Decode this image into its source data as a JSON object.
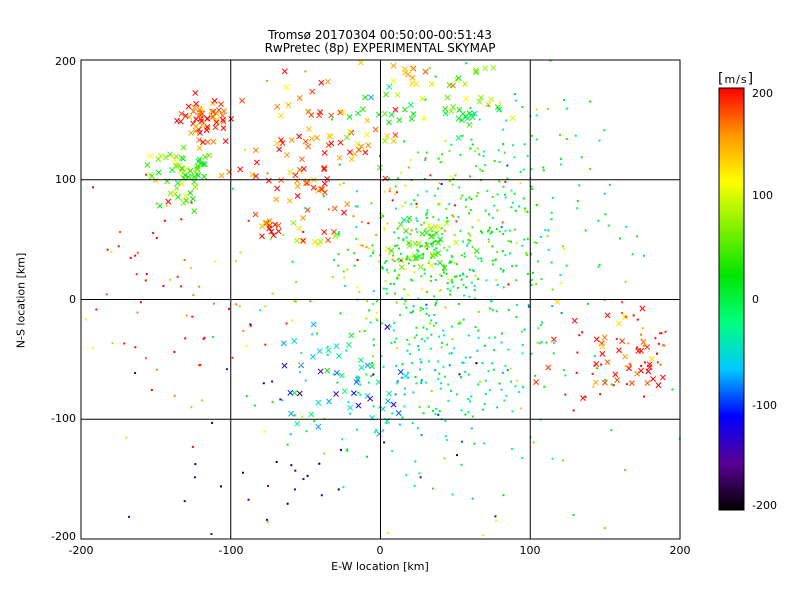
{
  "chart_data": {
    "type": "scatter",
    "title": "Tromsø 20170304 00:50:00-00:51:43",
    "subtitle": "RwPretec (8p) EXPERIMENTAL SKYMAP",
    "xlabel": "E-W location [km]",
    "ylabel": "N-S location [km]",
    "xlim": [
      -200,
      200
    ],
    "ylim": [
      -200,
      200
    ],
    "xticks": [
      "-200",
      "-100",
      "0",
      "100",
      "200"
    ],
    "yticks": [
      "200",
      "100",
      "0",
      "-100",
      "-200"
    ],
    "grid": true,
    "colorbar": {
      "unit": "m/s",
      "range": [
        -200,
        200
      ],
      "ticks": [
        "200",
        "100",
        "0",
        "-100",
        "-200"
      ],
      "colors": [
        "#000000",
        "#5a0096",
        "#0000ff",
        "#00c8ff",
        "#00ff7f",
        "#00e600",
        "#7ff000",
        "#ffff00",
        "#ff9600",
        "#ff0000"
      ]
    },
    "clusters": [
      {
        "x": -118,
        "y": 150,
        "spread": 9,
        "n": 55,
        "v": 190,
        "marker": "x"
      },
      {
        "x": -140,
        "y": 110,
        "spread": 9,
        "n": 25,
        "v": 60,
        "marker": "x"
      },
      {
        "x": -125,
        "y": 110,
        "spread": 7,
        "n": 22,
        "v": 35,
        "marker": "x"
      },
      {
        "x": -130,
        "y": 85,
        "spread": 8,
        "n": 12,
        "v": 70,
        "marker": "x"
      },
      {
        "x": -75,
        "y": 62,
        "spread": 4,
        "n": 14,
        "v": 195,
        "marker": "x"
      },
      {
        "x": -40,
        "y": 50,
        "spread": 8,
        "n": 10,
        "v": 100,
        "marker": "x"
      },
      {
        "x": -40,
        "y": 128,
        "spread": 30,
        "n": 70,
        "v": 170,
        "marker": "x"
      },
      {
        "x": -15,
        "y": 130,
        "spread": 10,
        "n": 12,
        "v": 105,
        "marker": "x"
      },
      {
        "x": -50,
        "y": 100,
        "spread": 12,
        "n": 20,
        "v": 185,
        "marker": "x"
      },
      {
        "x": 25,
        "y": 45,
        "spread": 12,
        "n": 40,
        "v": 50,
        "marker": "x"
      },
      {
        "x": 10,
        "y": 75,
        "spread": 30,
        "n": 60,
        "v": 150,
        "marker": "dot"
      },
      {
        "x": 55,
        "y": 155,
        "spread": 5,
        "n": 14,
        "v": 20,
        "marker": "x"
      },
      {
        "x": 55,
        "y": 175,
        "spread": 14,
        "n": 20,
        "v": 60,
        "marker": "x"
      },
      {
        "x": 20,
        "y": 185,
        "spread": 15,
        "n": 20,
        "v": 130,
        "marker": "x"
      },
      {
        "x": 10,
        "y": 155,
        "spread": 12,
        "n": 15,
        "v": 0,
        "marker": "x"
      },
      {
        "x": 40,
        "y": 40,
        "spread": 35,
        "n": 300,
        "v": 20,
        "marker": "dot"
      },
      {
        "x": 100,
        "y": 70,
        "spread": 40,
        "n": 80,
        "v": -10,
        "marker": "dot"
      },
      {
        "x": 90,
        "y": 130,
        "spread": 30,
        "n": 50,
        "v": 10,
        "marker": "dot"
      },
      {
        "x": 40,
        "y": -60,
        "spread": 40,
        "n": 250,
        "v": -30,
        "marker": "dot"
      },
      {
        "x": -20,
        "y": -70,
        "spread": 25,
        "n": 50,
        "v": -60,
        "marker": "x"
      },
      {
        "x": 160,
        "y": -45,
        "spread": 22,
        "n": 40,
        "v": 190,
        "marker": "x"
      },
      {
        "x": 170,
        "y": -40,
        "spread": 25,
        "n": 50,
        "v": 190,
        "marker": "dot"
      },
      {
        "x": -60,
        "y": -140,
        "spread": 50,
        "n": 40,
        "v": -160,
        "marker": "dot"
      },
      {
        "x": -150,
        "y": 20,
        "spread": 40,
        "n": 40,
        "v": 190,
        "marker": "dot"
      },
      {
        "x": -130,
        "y": -60,
        "spread": 30,
        "n": 15,
        "v": 190,
        "marker": "dot"
      },
      {
        "x": 0,
        "y": 0,
        "spread": 120,
        "n": 120,
        "v": 60,
        "marker": "dot"
      }
    ]
  }
}
